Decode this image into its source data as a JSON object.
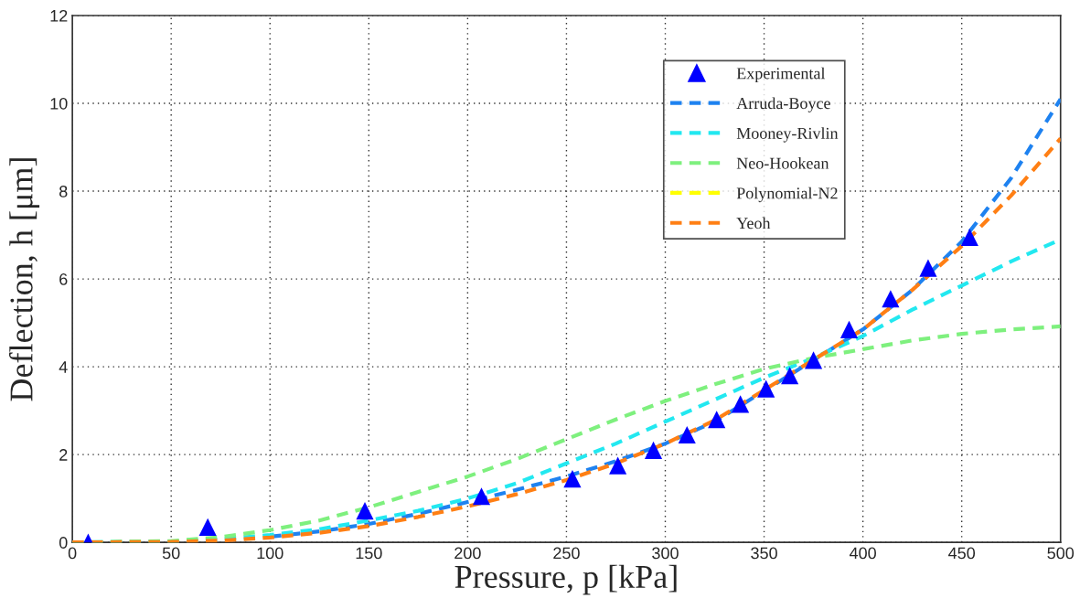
{
  "chart_data": {
    "type": "line",
    "xlabel": "Pressure, p [kPa]",
    "ylabel": "Deflection, h [μm]",
    "xlim": [
      0,
      500
    ],
    "ylim": [
      0,
      12
    ],
    "xticks": [
      0,
      50,
      100,
      150,
      200,
      250,
      300,
      350,
      400,
      450,
      500
    ],
    "yticks": [
      0,
      2,
      4,
      6,
      8,
      10,
      12
    ],
    "grid": true,
    "legend": "top right",
    "line_style": "dashed",
    "series": [
      {
        "name": "Experimental",
        "type": "scatter",
        "marker": "triangle",
        "color": "#0000ff",
        "x": [
          8,
          68.5,
          148,
          207,
          253,
          276,
          294,
          311,
          326,
          338,
          351,
          363,
          375,
          393,
          414,
          433,
          454
        ],
        "values": [
          0.0,
          0.35,
          0.72,
          1.05,
          1.45,
          1.75,
          2.1,
          2.45,
          2.8,
          3.15,
          3.5,
          3.8,
          4.15,
          4.85,
          5.55,
          6.25,
          6.95
        ]
      },
      {
        "name": "Arruda-Boyce",
        "color": "#1e82f0",
        "x": [
          100,
          125,
          150,
          175,
          200,
          225,
          250,
          275,
          300,
          325,
          400,
          425,
          450,
          475,
          500
        ],
        "values": [
          0.13,
          0.25,
          0.42,
          0.65,
          0.92,
          1.2,
          1.5,
          1.85,
          2.25,
          2.75,
          4.85,
          5.75,
          6.85,
          8.3,
          10.1
        ]
      },
      {
        "name": "Mooney-Rivlin",
        "color": "#22e8f0",
        "x": [
          0,
          50,
          75,
          100,
          125,
          150,
          175,
          200,
          225,
          250,
          275,
          300,
          325,
          350,
          375,
          400,
          425,
          450,
          475,
          500
        ],
        "values": [
          0,
          0.02,
          0.07,
          0.17,
          0.3,
          0.5,
          0.72,
          1.0,
          1.35,
          1.8,
          2.25,
          2.75,
          3.25,
          3.75,
          4.2,
          4.7,
          5.3,
          5.85,
          6.4,
          6.9
        ]
      },
      {
        "name": "Neo-Hookean",
        "color": "#7ef07e",
        "x": [
          0,
          50,
          75,
          100,
          125,
          150,
          175,
          200,
          225,
          250,
          275,
          300,
          325,
          350,
          375,
          400,
          425,
          450,
          475,
          500
        ],
        "values": [
          0,
          0.03,
          0.12,
          0.28,
          0.5,
          0.8,
          1.15,
          1.5,
          1.9,
          2.35,
          2.8,
          3.22,
          3.6,
          3.95,
          4.2,
          4.4,
          4.6,
          4.75,
          4.85,
          4.92
        ]
      },
      {
        "name": "Polynomial-N2",
        "color": "#ffff00"
      },
      {
        "name": "Yeoh",
        "color": "#ff7f14",
        "x": [
          0,
          50,
          75,
          100,
          125,
          150,
          175,
          200,
          225,
          250,
          275,
          300,
          325,
          400,
          425,
          450,
          475,
          500
        ],
        "values": [
          0,
          0.01,
          0.04,
          0.11,
          0.22,
          0.37,
          0.58,
          0.82,
          1.1,
          1.42,
          1.8,
          2.25,
          2.78,
          4.85,
          5.75,
          6.75,
          7.9,
          9.2
        ]
      }
    ]
  }
}
